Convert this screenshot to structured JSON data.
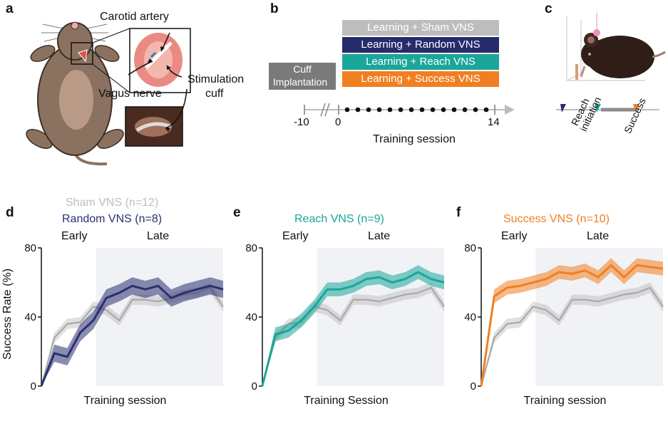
{
  "panels": {
    "a": {
      "label": "a",
      "carotid": "Carotid artery",
      "vagus": "Vagus nerve",
      "cuff_line1": "Stimulation",
      "cuff_line2": "cuff"
    },
    "b": {
      "label": "b",
      "conditions": [
        {
          "text": "Learning + Sham VNS",
          "color": "#bdbdbd"
        },
        {
          "text": "Learning + Random VNS",
          "color": "#262b6b"
        },
        {
          "text": "Learning + Reach VNS",
          "color": "#1aa69a"
        },
        {
          "text": "Learning + Success VNS",
          "color": "#f07f22"
        }
      ],
      "cuff_line1": "Cuff",
      "cuff_line2": "Implantation",
      "tick_start": "-10",
      "tick_zero": "0",
      "tick_end": "14",
      "xlabel": "Training session"
    },
    "c": {
      "label": "c",
      "reach1": "Reach",
      "reach2": "initiation",
      "success": "Success"
    }
  },
  "chart_data": [
    {
      "panel": "d",
      "type": "line",
      "title_lines": [
        "Sham VNS (n=12)",
        "Random VNS (n=8)"
      ],
      "title_colors": [
        "#bdbdbd",
        "#2a2f70"
      ],
      "early": "Early",
      "late": "Late",
      "ylabel": "Success Rate (%)",
      "xlabel": "Training session",
      "yticks": [
        "80",
        "40",
        "0"
      ],
      "ylim": [
        0,
        80
      ],
      "x": [
        0,
        1,
        2,
        3,
        4,
        5,
        6,
        7,
        8,
        9,
        10,
        11,
        12,
        13,
        14
      ],
      "series": [
        {
          "name": "Sham VNS",
          "color": "#a9a9a9",
          "values": [
            0,
            28,
            36,
            37,
            46,
            44,
            38,
            50,
            50,
            49,
            51,
            53,
            54,
            57,
            46
          ],
          "err": 3
        },
        {
          "name": "Random VNS",
          "color": "#2a2f70",
          "values": [
            0,
            19,
            17,
            31,
            38,
            51,
            54,
            58,
            56,
            58,
            51,
            54,
            56,
            58,
            56
          ],
          "err": 5
        }
      ]
    },
    {
      "panel": "e",
      "type": "line",
      "title_lines": [
        "Reach VNS (n=9)"
      ],
      "title_colors": [
        "#1aa69a"
      ],
      "early": "Early",
      "late": "Late",
      "ylabel": "",
      "xlabel": "Training Session",
      "yticks": [
        "80",
        "40",
        "0"
      ],
      "ylim": [
        0,
        80
      ],
      "x": [
        0,
        1,
        2,
        3,
        4,
        5,
        6,
        7,
        8,
        9,
        10,
        11,
        12,
        13,
        14
      ],
      "series": [
        {
          "name": "Sham VNS",
          "color": "#a9a9a9",
          "values": [
            0,
            28,
            36,
            37,
            46,
            44,
            38,
            50,
            50,
            49,
            51,
            53,
            54,
            57,
            46
          ],
          "err": 3
        },
        {
          "name": "Reach VNS",
          "color": "#1aa69a",
          "values": [
            0,
            30,
            32,
            38,
            46,
            56,
            56,
            58,
            62,
            63,
            60,
            62,
            66,
            62,
            60
          ],
          "err": 4
        }
      ]
    },
    {
      "panel": "f",
      "type": "line",
      "title_lines": [
        "Success VNS (n=10)"
      ],
      "title_colors": [
        "#f07f22"
      ],
      "early": "Early",
      "late": "Late",
      "ylabel": "",
      "xlabel": "Training session",
      "yticks": [
        "80",
        "40",
        "0"
      ],
      "ylim": [
        0,
        80
      ],
      "x": [
        0,
        1,
        2,
        3,
        4,
        5,
        6,
        7,
        8,
        9,
        10,
        11,
        12,
        13,
        14
      ],
      "series": [
        {
          "name": "Sham VNS",
          "color": "#a9a9a9",
          "values": [
            0,
            28,
            36,
            37,
            46,
            44,
            38,
            50,
            50,
            49,
            51,
            53,
            54,
            57,
            46
          ],
          "err": 3
        },
        {
          "name": "Success VNS",
          "color": "#f07f22",
          "values": [
            0,
            52,
            57,
            58,
            60,
            62,
            66,
            65,
            67,
            63,
            70,
            63,
            70,
            69,
            68
          ],
          "err": 4
        }
      ]
    }
  ]
}
